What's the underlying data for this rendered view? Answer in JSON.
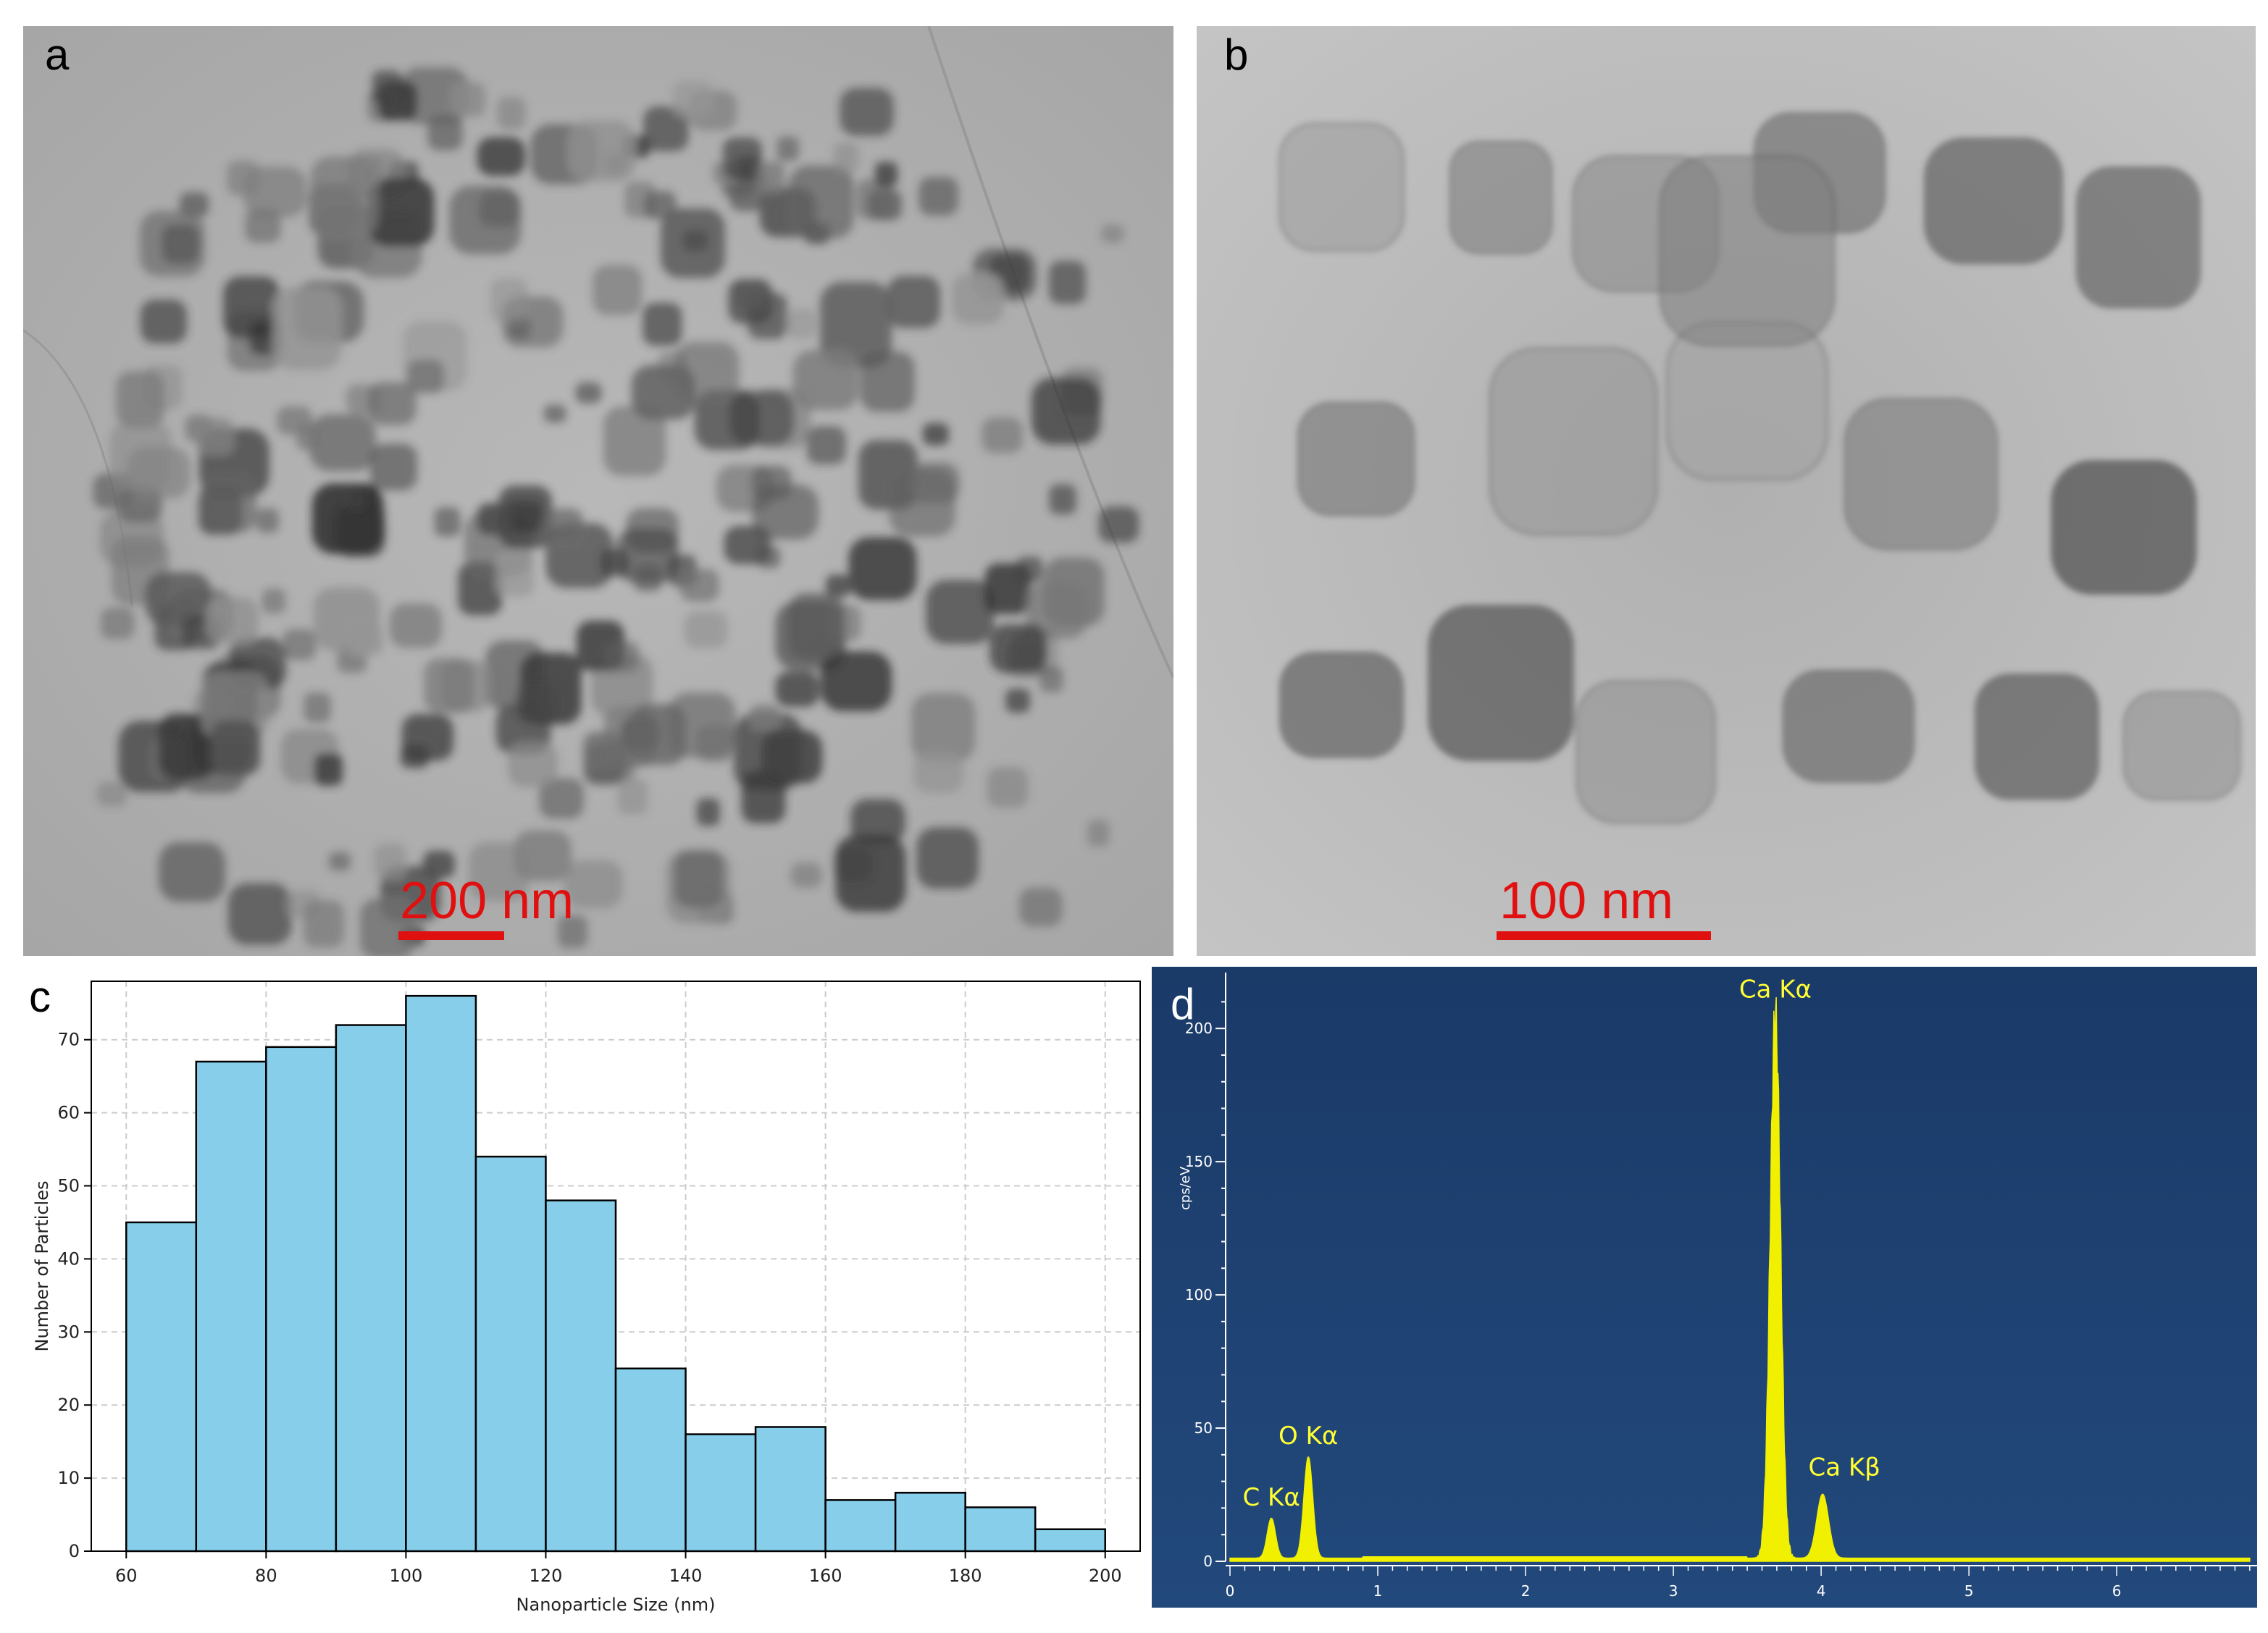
{
  "panels": {
    "a": {
      "label": "a",
      "scale_bar": "200 nm"
    },
    "b": {
      "label": "b",
      "scale_bar": "100 nm"
    },
    "c": {
      "label": "c"
    },
    "d": {
      "label": "d"
    }
  },
  "chart_data": [
    {
      "panel": "c",
      "type": "bar",
      "xlabel": "Nanoparticle Size (nm)",
      "ylabel": "Number of Particles",
      "bin_edges": [
        60,
        70,
        80,
        90,
        100,
        110,
        120,
        130,
        140,
        150,
        160,
        170,
        180,
        190,
        200
      ],
      "values": [
        45,
        67,
        69,
        72,
        76,
        54,
        48,
        25,
        16,
        17,
        7,
        8,
        6,
        3
      ],
      "xlim": [
        55,
        205
      ],
      "ylim": [
        0,
        78
      ],
      "xticks": [
        "60",
        "80",
        "100",
        "120",
        "140",
        "160",
        "180",
        "200"
      ],
      "yticks": [
        "0",
        "10",
        "20",
        "30",
        "40",
        "50",
        "60",
        "70"
      ],
      "grid": true,
      "colors": {
        "bar_fill": "#87ceeb",
        "bar_edge": "#000000",
        "grid": "#cccccc"
      }
    },
    {
      "panel": "d",
      "type": "area",
      "ylabel": "cps/eV",
      "xlim": [
        -0.05,
        6.95
      ],
      "ylim": [
        0,
        215
      ],
      "xticks": [
        "0",
        "1",
        "2",
        "3",
        "4",
        "5",
        "6"
      ],
      "yticks": [
        "0",
        "50",
        "100",
        "150",
        "200"
      ],
      "peaks": [
        {
          "label": "C Kα",
          "x": 0.28,
          "y": 15
        },
        {
          "label": "O Kα",
          "x": 0.53,
          "y": 38
        },
        {
          "label": "Ca Kα",
          "x": 3.69,
          "y": 204
        },
        {
          "label": "Ca Kβ",
          "x": 4.01,
          "y": 24
        }
      ],
      "colors": {
        "background": "#1d3f6e",
        "spectrum": "#f0f000",
        "axis": "#ffffff",
        "label": "#ffff33"
      }
    }
  ]
}
